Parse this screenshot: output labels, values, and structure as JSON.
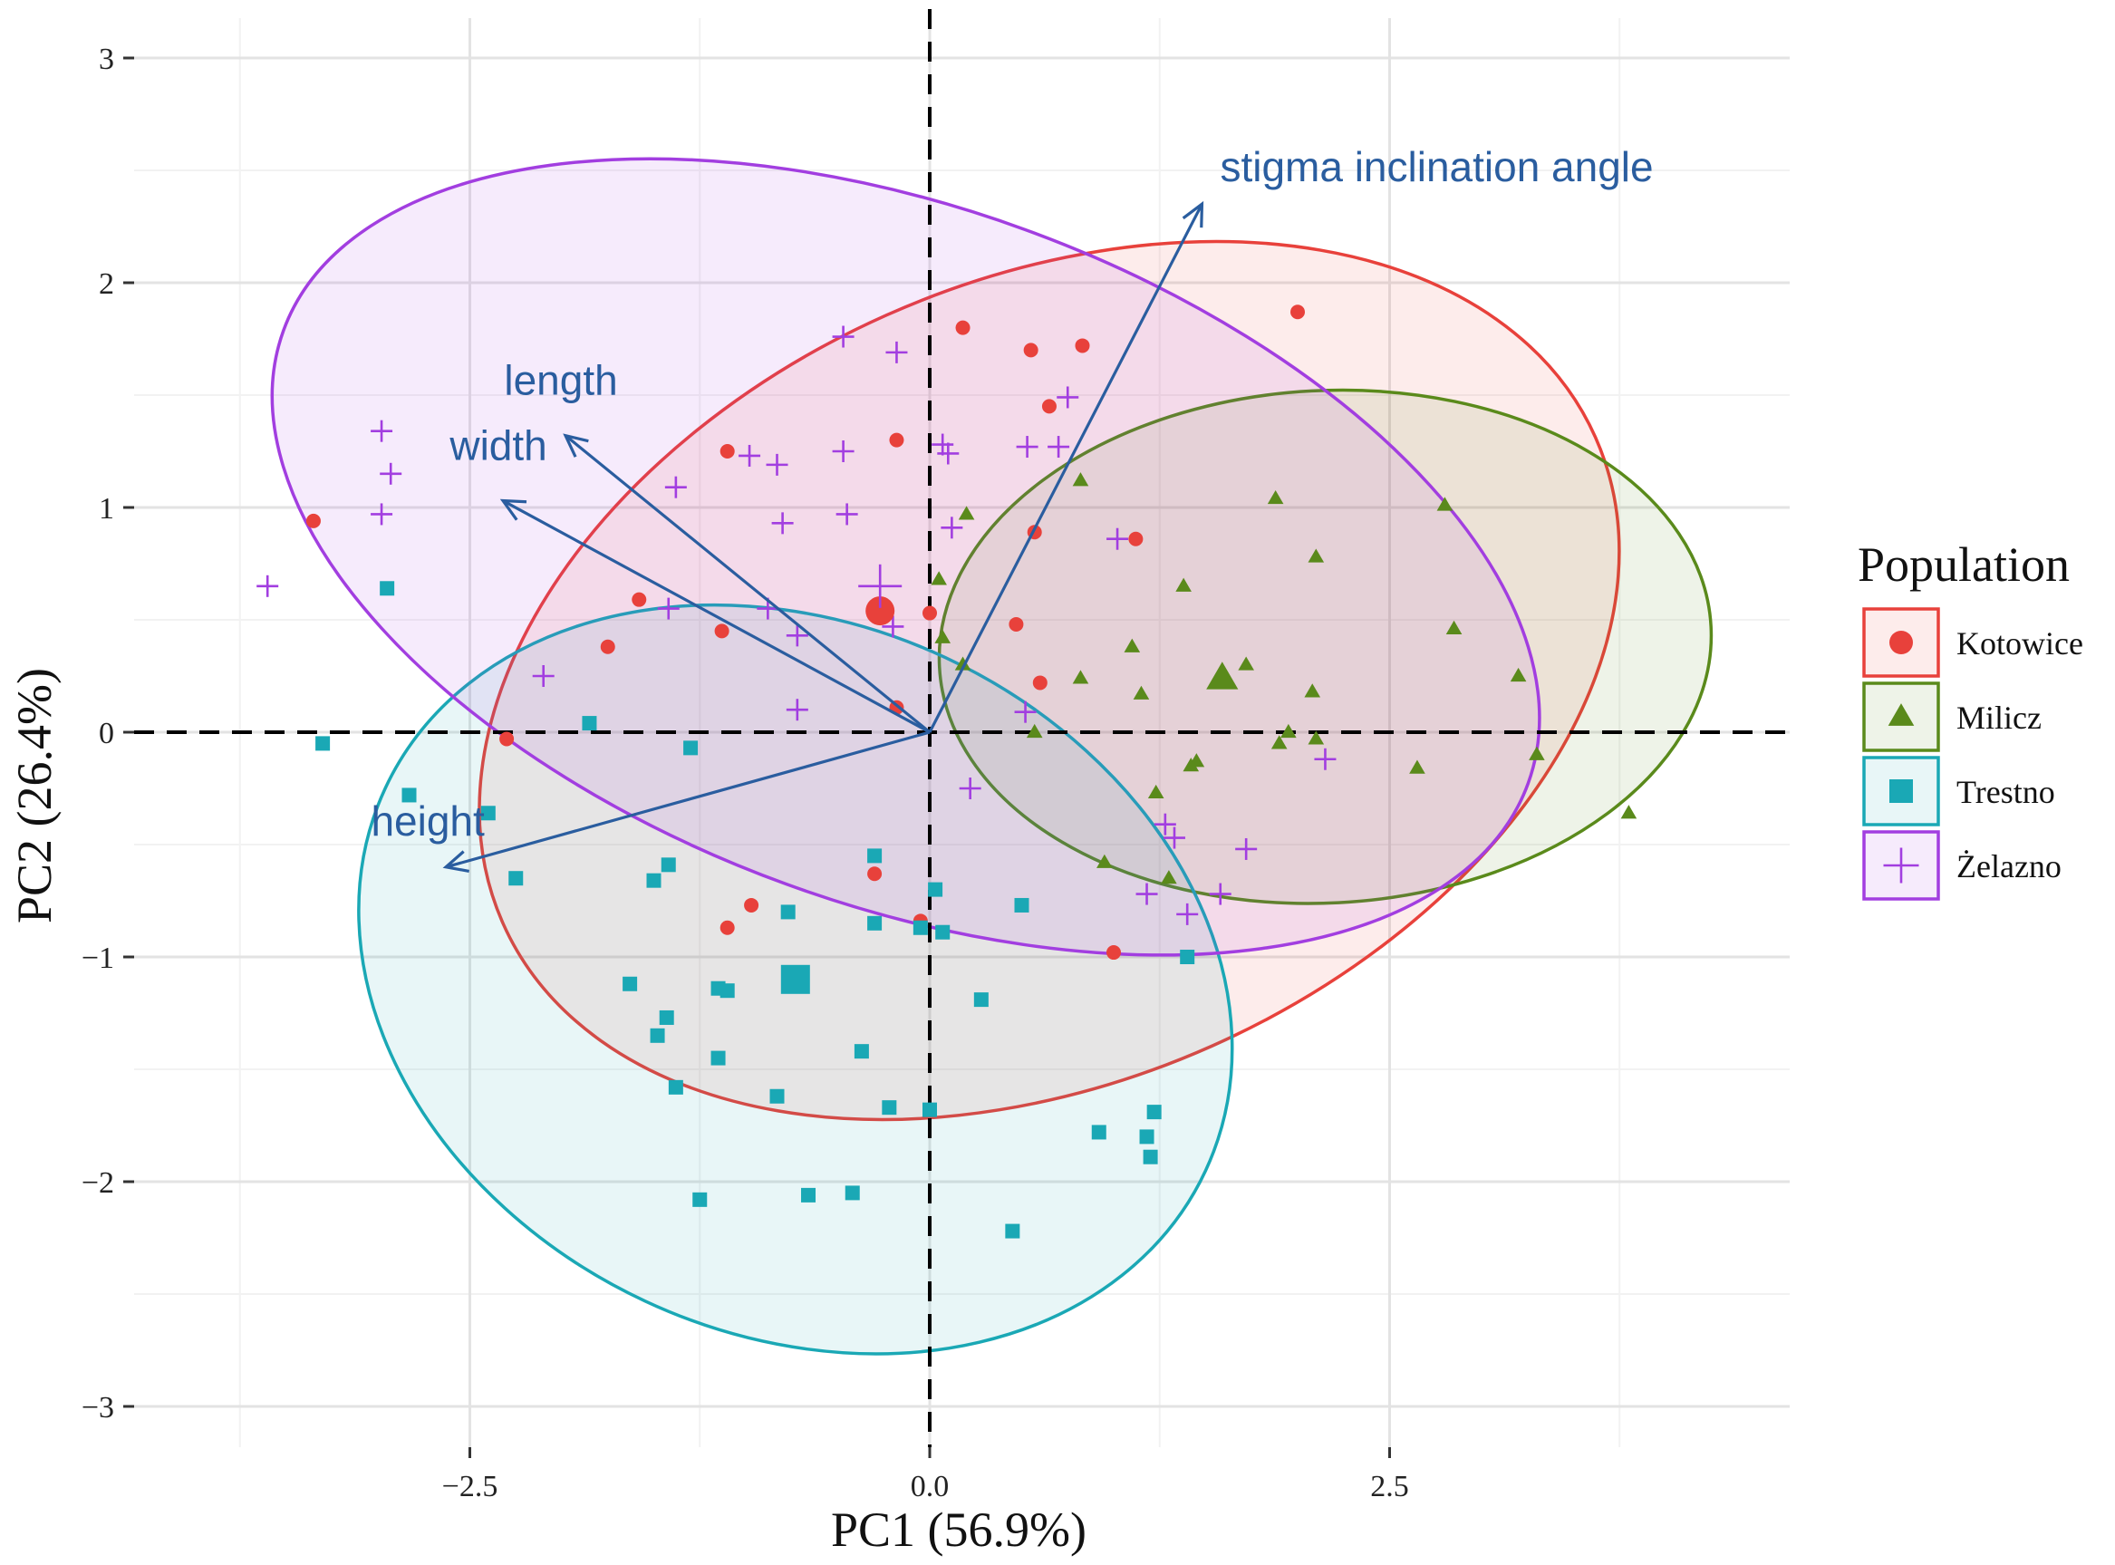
{
  "chart_data": {
    "type": "scatter",
    "subtype": "pca-biplot",
    "xlabel": "PC1 (56.9%)",
    "ylabel": "PC2 (26.4%)",
    "xlim": [
      -4.55,
      4.55
    ],
    "ylim": [
      -3.15,
      3.15
    ],
    "xticks": [
      -2.5,
      0.0,
      2.5
    ],
    "xtick_labels": [
      "−2.5",
      "0.0",
      "2.5"
    ],
    "yticks": [
      -3,
      -2,
      -1,
      0,
      1,
      2,
      3
    ],
    "ytick_labels": [
      "−3",
      "−2",
      "−1",
      "0",
      "1",
      "2",
      "3"
    ],
    "grid": true,
    "reference_lines": {
      "x": 0,
      "y": 0,
      "style": "dashed"
    },
    "legend": {
      "title": "Population",
      "position": "right"
    },
    "series": [
      {
        "name": "Kotowice",
        "marker": "circle",
        "color": "#e8413b",
        "centroid": [
          -0.27,
          0.54
        ],
        "ellipse": {
          "cx": 0.65,
          "cy": 0.23,
          "rx": 3.25,
          "ry": 1.78,
          "angle": 24
        },
        "points": [
          [
            -3.35,
            0.94
          ],
          [
            -2.3,
            -0.03
          ],
          [
            -1.75,
            0.38
          ],
          [
            -1.58,
            0.59
          ],
          [
            -1.13,
            0.45
          ],
          [
            -1.1,
            1.25
          ],
          [
            -1.1,
            -0.87
          ],
          [
            -0.97,
            -0.77
          ],
          [
            -0.3,
            -0.63
          ],
          [
            -0.18,
            1.3
          ],
          [
            -0.18,
            0.11
          ],
          [
            0.0,
            0.53
          ],
          [
            0.18,
            1.8
          ],
          [
            0.47,
            0.48
          ],
          [
            0.55,
            1.7
          ],
          [
            0.57,
            0.89
          ],
          [
            0.6,
            0.22
          ],
          [
            0.65,
            1.45
          ],
          [
            0.83,
            1.72
          ],
          [
            1.12,
            0.86
          ],
          [
            1.0,
            -0.98
          ],
          [
            2.0,
            1.87
          ],
          [
            -0.05,
            -0.84
          ]
        ]
      },
      {
        "name": "Milicz",
        "marker": "triangle",
        "color": "#5a8a1b",
        "centroid": [
          1.59,
          0.24
        ],
        "ellipse": {
          "cx": 2.15,
          "cy": 0.38,
          "rx": 2.1,
          "ry": 1.14,
          "angle": 3
        },
        "points": [
          [
            0.05,
            0.68
          ],
          [
            0.07,
            0.42
          ],
          [
            0.18,
            0.3
          ],
          [
            0.2,
            0.97
          ],
          [
            0.57,
            -0.0
          ],
          [
            0.82,
            0.24
          ],
          [
            0.82,
            1.12
          ],
          [
            0.95,
            -0.58
          ],
          [
            1.1,
            0.38
          ],
          [
            1.15,
            0.17
          ],
          [
            1.23,
            -0.27
          ],
          [
            1.3,
            -0.65
          ],
          [
            1.38,
            0.65
          ],
          [
            1.45,
            -0.13
          ],
          [
            1.72,
            0.3
          ],
          [
            1.88,
            1.04
          ],
          [
            1.9,
            -0.05
          ],
          [
            2.08,
            0.18
          ],
          [
            2.1,
            0.78
          ],
          [
            2.1,
            -0.03
          ],
          [
            2.8,
            1.01
          ],
          [
            2.85,
            0.46
          ],
          [
            2.65,
            -0.16
          ],
          [
            3.2,
            0.25
          ],
          [
            3.3,
            -0.1
          ],
          [
            3.8,
            -0.36
          ],
          [
            1.42,
            -0.15
          ],
          [
            1.95,
            0.0
          ]
        ]
      },
      {
        "name": "Trestno",
        "marker": "square",
        "color": "#1aa8b5",
        "centroid": [
          -0.73,
          -1.1
        ],
        "ellipse": {
          "cx": -0.73,
          "cy": -1.1,
          "rx": 2.46,
          "ry": 1.58,
          "angle": -25
        },
        "points": [
          [
            -3.3,
            -0.05
          ],
          [
            -2.95,
            0.64
          ],
          [
            -2.83,
            -0.28
          ],
          [
            -2.4,
            -0.36
          ],
          [
            -2.25,
            -0.65
          ],
          [
            -1.85,
            0.04
          ],
          [
            -1.5,
            -0.66
          ],
          [
            -1.42,
            -0.59
          ],
          [
            -1.3,
            -0.07
          ],
          [
            -1.63,
            -1.12
          ],
          [
            -1.48,
            -1.35
          ],
          [
            -1.43,
            -1.27
          ],
          [
            -1.38,
            -1.58
          ],
          [
            -1.15,
            -1.14
          ],
          [
            -1.1,
            -1.15
          ],
          [
            -1.15,
            -1.45
          ],
          [
            -1.25,
            -2.08
          ],
          [
            -0.83,
            -1.62
          ],
          [
            -0.77,
            -0.8
          ],
          [
            -0.66,
            -2.06
          ],
          [
            -0.42,
            -2.05
          ],
          [
            -0.37,
            -1.42
          ],
          [
            -0.3,
            -0.55
          ],
          [
            -0.3,
            -0.85
          ],
          [
            -0.22,
            -1.67
          ],
          [
            -0.05,
            -0.87
          ],
          [
            0.03,
            -0.7
          ],
          [
            0.07,
            -0.89
          ],
          [
            0.0,
            -1.68
          ],
          [
            0.28,
            -1.19
          ],
          [
            0.45,
            -2.22
          ],
          [
            0.5,
            -0.77
          ],
          [
            0.92,
            -1.78
          ],
          [
            1.18,
            -1.8
          ],
          [
            1.2,
            -1.89
          ],
          [
            1.22,
            -1.69
          ],
          [
            1.4,
            -1.0
          ]
        ]
      },
      {
        "name": "Żelazno",
        "marker": "plus",
        "color": "#a23ee0",
        "centroid": [
          -0.27,
          0.65
        ],
        "ellipse": {
          "cx": -0.13,
          "cy": 0.78,
          "rx": 3.6,
          "ry": 1.55,
          "angle": -20
        },
        "points": [
          [
            -3.6,
            0.65
          ],
          [
            -2.98,
            1.34
          ],
          [
            -2.93,
            1.15
          ],
          [
            -2.98,
            0.97
          ],
          [
            -2.1,
            0.25
          ],
          [
            -1.38,
            1.09
          ],
          [
            -1.42,
            0.55
          ],
          [
            -0.98,
            1.23
          ],
          [
            -0.83,
            1.19
          ],
          [
            -0.8,
            0.93
          ],
          [
            -0.88,
            0.55
          ],
          [
            -0.72,
            0.43
          ],
          [
            -0.72,
            0.1
          ],
          [
            -0.47,
            1.76
          ],
          [
            -0.47,
            1.25
          ],
          [
            -0.45,
            0.97
          ],
          [
            -0.18,
            1.69
          ],
          [
            -0.2,
            0.47
          ],
          [
            0.07,
            1.28
          ],
          [
            0.1,
            1.24
          ],
          [
            0.12,
            0.91
          ],
          [
            0.22,
            -0.25
          ],
          [
            0.52,
            0.09
          ],
          [
            0.53,
            1.27
          ],
          [
            0.7,
            1.27
          ],
          [
            0.75,
            1.49
          ],
          [
            1.02,
            0.86
          ],
          [
            1.18,
            -0.72
          ],
          [
            1.28,
            -0.41
          ],
          [
            1.33,
            -0.47
          ],
          [
            1.4,
            -0.81
          ],
          [
            1.58,
            -0.72
          ],
          [
            1.72,
            -0.52
          ],
          [
            2.15,
            -0.12
          ]
        ]
      }
    ],
    "loadings": [
      {
        "label": "stigma inclination angle",
        "x": 1.48,
        "y": 2.35
      },
      {
        "label": "length",
        "x": -1.98,
        "y": 1.32
      },
      {
        "label": "width",
        "x": -2.32,
        "y": 1.03
      },
      {
        "label": "height",
        "x": -2.63,
        "y": -0.6
      }
    ]
  }
}
